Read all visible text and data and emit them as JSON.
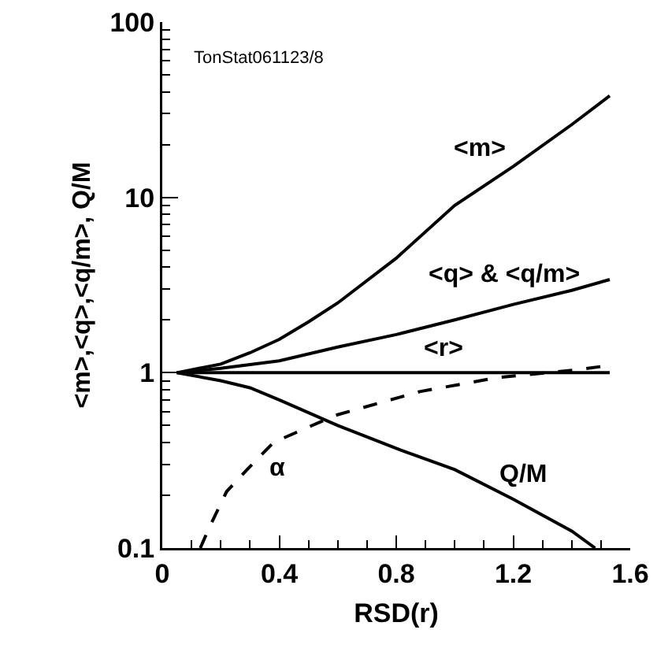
{
  "chart_data": {
    "type": "line",
    "xlabel": "RSD(r)",
    "ylabel": "<m>,<q>,<q/m>, Q/M",
    "log": "y",
    "xlim": [
      0,
      1.6
    ],
    "xticks": [
      0,
      0.4,
      0.8,
      1.2,
      1.6
    ],
    "ylim": [
      0.1,
      100
    ],
    "yticks": [
      0.1,
      1,
      10,
      100
    ],
    "grid": false,
    "legend": false,
    "marker": "none",
    "series": [
      {
        "name": "<m>",
        "color": "#000000",
        "line_style": "solid",
        "x": [
          0.05,
          0.2,
          0.3,
          0.4,
          0.5,
          0.6,
          0.8,
          1.0,
          1.2,
          1.4,
          1.53
        ],
        "values": [
          1,
          1.12,
          1.3,
          1.55,
          1.95,
          2.5,
          4.5,
          9,
          15,
          26,
          38
        ]
      },
      {
        "name": "<q> & <q/m>",
        "color": "#000000",
        "line_style": "solid",
        "x": [
          0.05,
          0.2,
          0.4,
          0.6,
          0.8,
          1.0,
          1.2,
          1.4,
          1.53
        ],
        "values": [
          1,
          1.06,
          1.17,
          1.4,
          1.65,
          2.0,
          2.45,
          2.95,
          3.4
        ]
      },
      {
        "name": "<r>",
        "color": "#000000",
        "line_style": "solid",
        "x": [
          0.05,
          1.53
        ],
        "values": [
          1,
          1
        ]
      },
      {
        "name": "Q/M",
        "color": "#000000",
        "line_style": "solid",
        "x": [
          0.05,
          0.2,
          0.3,
          0.4,
          0.6,
          0.8,
          1.0,
          1.2,
          1.4,
          1.48
        ],
        "values": [
          1,
          0.9,
          0.82,
          0.7,
          0.5,
          0.37,
          0.28,
          0.19,
          0.125,
          0.1
        ]
      },
      {
        "name": "α",
        "color": "#000000",
        "line_style": "dashed",
        "x": [
          0.13,
          0.16,
          0.22,
          0.29,
          0.38,
          0.59,
          0.88,
          1.15,
          1.42,
          1.51
        ],
        "values": [
          0.1,
          0.13,
          0.21,
          0.28,
          0.4,
          0.57,
          0.78,
          0.94,
          1.04,
          1.09
        ]
      }
    ],
    "annotations": [
      "TonStat061123/8"
    ]
  }
}
